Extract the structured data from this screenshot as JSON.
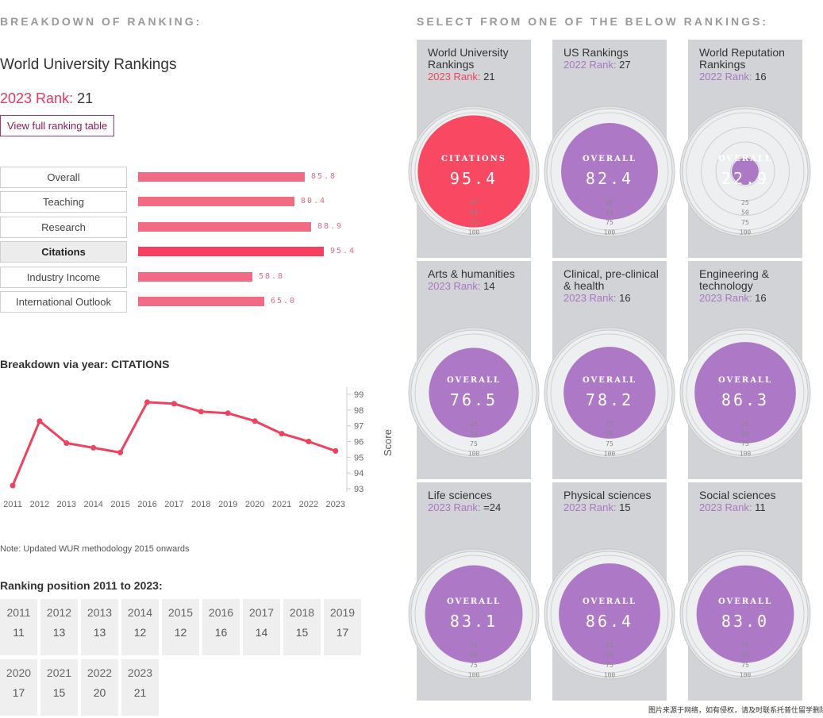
{
  "left_heading": "BREAKDOWN OF RANKING:",
  "right_heading": "SELECT FROM ONE OF THE BELOW RANKINGS:",
  "title": "World University Rankings",
  "rank_label": "2023 Rank:",
  "rank_value": "21",
  "full_table_button": "View full ranking table",
  "metrics": [
    {
      "label": "Overall",
      "value": 85.8,
      "display": "85.8"
    },
    {
      "label": "Teaching",
      "value": 80.4,
      "display": "80.4"
    },
    {
      "label": "Research",
      "value": 88.9,
      "display": "88.9"
    },
    {
      "label": "Citations",
      "value": 95.4,
      "display": "95.4",
      "active": true
    },
    {
      "label": "Industry Income",
      "value": 58.8,
      "display": "58.8"
    },
    {
      "label": "International Outlook",
      "value": 65.0,
      "display": "65.0"
    }
  ],
  "breakdown_title": "Breakdown via year: CITATIONS",
  "chart_data": {
    "type": "line",
    "title": "Breakdown via year: CITATIONS",
    "xlabel": "",
    "ylabel": "Score",
    "categories": [
      "2011",
      "2012",
      "2013",
      "2014",
      "2015",
      "2016",
      "2017",
      "2018",
      "2019",
      "2020",
      "2021",
      "2022",
      "2023"
    ],
    "values": [
      93.2,
      97.3,
      95.9,
      95.6,
      95.3,
      98.5,
      98.4,
      97.9,
      97.8,
      97.3,
      96.5,
      96.0,
      95.4
    ],
    "y_ticks": [
      "93",
      "94",
      "95",
      "96",
      "97",
      "98",
      "99"
    ],
    "ylim": [
      92.8,
      99.2
    ],
    "color": "#f0415f"
  },
  "note": "Note: Updated WUR methodology 2015 onwards",
  "position_title": "Ranking position 2011 to 2023:",
  "positions": [
    {
      "year": "2011",
      "rank": "11"
    },
    {
      "year": "2012",
      "rank": "13"
    },
    {
      "year": "2013",
      "rank": "13"
    },
    {
      "year": "2014",
      "rank": "12"
    },
    {
      "year": "2015",
      "rank": "12"
    },
    {
      "year": "2016",
      "rank": "16"
    },
    {
      "year": "2017",
      "rank": "14"
    },
    {
      "year": "2018",
      "rank": "15"
    },
    {
      "year": "2019",
      "rank": "17"
    },
    {
      "year": "2020",
      "rank": "17"
    },
    {
      "year": "2021",
      "rank": "15"
    },
    {
      "year": "2022",
      "rank": "20"
    },
    {
      "year": "2023",
      "rank": "21"
    }
  ],
  "cards": [
    {
      "title": "World University Rankings",
      "rank_label": "2023 Rank:",
      "rank": "21",
      "metric": "CITATIONS",
      "score": "95.4",
      "value": 95.4,
      "color": "#f84862",
      "pink": true
    },
    {
      "title": "US Rankings",
      "rank_label": "2022 Rank:",
      "rank": "27",
      "metric": "OVERALL",
      "score": "82.4",
      "value": 82.4,
      "color": "#ad79c7"
    },
    {
      "title": "World Reputation Rankings",
      "rank_label": "2022 Rank:",
      "rank": "16",
      "metric": "OVERALL",
      "score": "22.9",
      "value": 22.9,
      "color": "#ad79c7"
    },
    {
      "title": "Arts & humanities",
      "rank_label": "2023 Rank:",
      "rank": "14",
      "metric": "OVERALL",
      "score": "76.5",
      "value": 76.5,
      "color": "#ad79c7"
    },
    {
      "title": "Clinical, pre-clinical & health",
      "rank_label": "2023 Rank:",
      "rank": "16",
      "metric": "OVERALL",
      "score": "78.2",
      "value": 78.2,
      "color": "#ad79c7"
    },
    {
      "title": "Engineering & technology",
      "rank_label": "2023 Rank:",
      "rank": "16",
      "metric": "OVERALL",
      "score": "86.3",
      "value": 86.3,
      "color": "#ad79c7"
    },
    {
      "title": "Life sciences",
      "rank_label": "2023 Rank:",
      "rank": "=24",
      "metric": "OVERALL",
      "score": "83.1",
      "value": 83.1,
      "color": "#ad79c7"
    },
    {
      "title": "Physical sciences",
      "rank_label": "2023 Rank:",
      "rank": "15",
      "metric": "OVERALL",
      "score": "86.4",
      "value": 86.4,
      "color": "#ad79c7"
    },
    {
      "title": "Social sciences",
      "rank_label": "2023 Rank:",
      "rank": "11",
      "metric": "OVERALL",
      "score": "83.0",
      "value": 83.0,
      "color": "#ad79c7"
    }
  ],
  "scale_labels": [
    "25",
    "50",
    "75",
    "100"
  ],
  "watermark": "图片来源于网络，如有侵权，请及时联系托普仕留学删除"
}
